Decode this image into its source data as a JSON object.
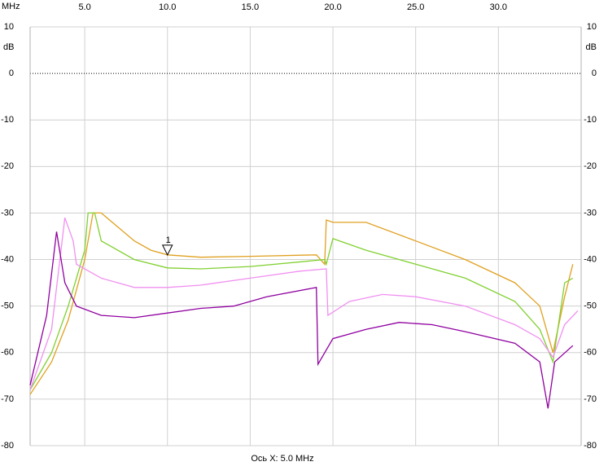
{
  "chart_data": {
    "type": "line",
    "x_unit": "MHz",
    "y_unit": "dB",
    "x_axis_label": "Ось X: 5.0 MHz",
    "xlim": [
      1.7,
      35.0
    ],
    "ylim": [
      -80,
      10
    ],
    "xticks": [
      {
        "value": 5,
        "label": "5.0"
      },
      {
        "value": 10,
        "label": "10.0"
      },
      {
        "value": 15,
        "label": "15.0"
      },
      {
        "value": 20,
        "label": "20.0"
      },
      {
        "value": 25,
        "label": "25.0"
      },
      {
        "value": 30,
        "label": "30.0"
      }
    ],
    "yticks": [
      10,
      0,
      -10,
      -20,
      -30,
      -40,
      -50,
      -60,
      -70,
      -80
    ],
    "grid": true,
    "marker": {
      "label": "1",
      "x": 10,
      "y": -39
    },
    "series": [
      {
        "color": "#e0a020",
        "x": [
          1.7,
          3,
          4,
          5,
          5.5,
          6,
          7,
          8,
          9,
          10,
          12,
          15,
          19,
          19.5,
          19.6,
          20,
          22,
          25,
          28,
          31,
          32.5,
          33.3,
          34,
          34.5
        ],
        "values": [
          -69,
          -62,
          -53,
          -40,
          -30,
          -30,
          -33,
          -36,
          -38,
          -39,
          -39.5,
          -39.3,
          -39,
          -41,
          -31.5,
          -32,
          -32,
          -36,
          -40,
          -45,
          -50,
          -60,
          -48,
          -41
        ]
      },
      {
        "color": "#80d030",
        "x": [
          1.7,
          3,
          4,
          5,
          5.2,
          5.6,
          6,
          8,
          10,
          12,
          15,
          19.5,
          19.6,
          20,
          22,
          25,
          28,
          31,
          32.5,
          33.3,
          34,
          34.5
        ],
        "values": [
          -68,
          -60,
          -50,
          -38,
          -30,
          -30,
          -36,
          -40,
          -41.8,
          -42,
          -41.5,
          -40,
          -41,
          -35.5,
          -38,
          -41,
          -44,
          -49,
          -55,
          -62,
          -45,
          -44
        ]
      },
      {
        "color": "#f090f0",
        "x": [
          1.7,
          3,
          3.8,
          4.3,
          4.5,
          6,
          8,
          10,
          12,
          15,
          18,
          19.6,
          19.7,
          21,
          23,
          25,
          28,
          31,
          32.5,
          33.3,
          34,
          34.8
        ],
        "values": [
          -68,
          -55,
          -31,
          -36,
          -41,
          -44,
          -46,
          -46,
          -45.5,
          -44,
          -42.5,
          -42,
          -52,
          -49,
          -47.5,
          -48,
          -50,
          -54,
          -57,
          -61,
          -54,
          -51
        ]
      },
      {
        "color": "#9000a0",
        "x": [
          1.7,
          2.7,
          3.3,
          3.8,
          4.5,
          6,
          8,
          10,
          12,
          14,
          16,
          19,
          19.1,
          20,
          22,
          24,
          26,
          28,
          31,
          32.5,
          33,
          33.4,
          34.5
        ],
        "values": [
          -67,
          -52,
          -34,
          -45,
          -50,
          -52,
          -52.5,
          -51.5,
          -50.5,
          -50,
          -48,
          -46,
          -62.5,
          -57,
          -55,
          -53.5,
          -54,
          -55.5,
          -58,
          -62,
          -72,
          -62,
          -58.5
        ]
      }
    ]
  }
}
